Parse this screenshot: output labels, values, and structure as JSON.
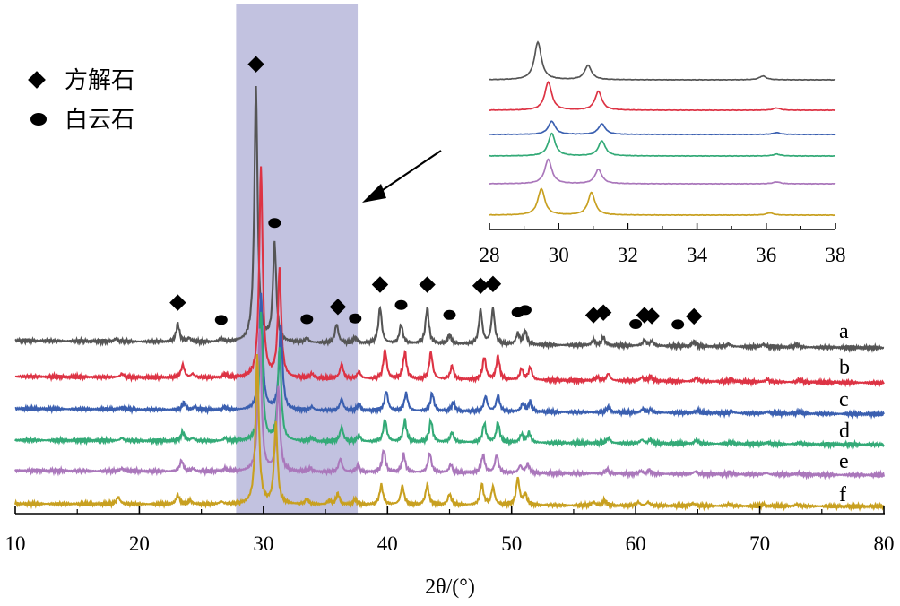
{
  "chart_data": [
    {
      "type": "line",
      "title": "",
      "xlabel": "2θ/(°)",
      "ylabel": "",
      "xlim": [
        10,
        80
      ],
      "xticks": [
        10,
        20,
        30,
        40,
        50,
        60,
        70,
        80
      ],
      "grid": false,
      "highlight_range": [
        27.8,
        37.6
      ],
      "legend": {
        "placement": "top-left",
        "entries": [
          {
            "symbol": "diamond",
            "label": "方解石"
          },
          {
            "symbol": "ellipse",
            "label": "白云石"
          }
        ]
      },
      "peak_markers": {
        "calcite": [
          23.1,
          29.4,
          36.0,
          39.4,
          43.2,
          47.5,
          48.5,
          56.6,
          57.4,
          60.7,
          61.3,
          64.7
        ],
        "dolomite": [
          26.6,
          30.9,
          33.5,
          37.4,
          41.1,
          45.0,
          50.5,
          51.1,
          60.0,
          63.4
        ]
      },
      "series": [
        {
          "name": "a",
          "color": "#555555",
          "peaks": [
            [
              18.1,
              0.03
            ],
            [
              23.1,
              0.2
            ],
            [
              24.0,
              0.04
            ],
            [
              26.6,
              0.04
            ],
            [
              29.4,
              2.85
            ],
            [
              30.9,
              1.1
            ],
            [
              33.5,
              0.05
            ],
            [
              35.9,
              0.21
            ],
            [
              37.4,
              0.06
            ],
            [
              39.4,
              0.4
            ],
            [
              41.1,
              0.21
            ],
            [
              43.2,
              0.4
            ],
            [
              45.0,
              0.1
            ],
            [
              47.5,
              0.38
            ],
            [
              48.5,
              0.4
            ],
            [
              50.5,
              0.12
            ],
            [
              51.1,
              0.15
            ],
            [
              56.6,
              0.06
            ],
            [
              57.4,
              0.09
            ],
            [
              60.7,
              0.06
            ],
            [
              61.3,
              0.05
            ],
            [
              64.7,
              0.05
            ],
            [
              67.5,
              0.03
            ],
            [
              70.3,
              0.03
            ],
            [
              73.0,
              0.03
            ]
          ]
        },
        {
          "name": "b",
          "color": "#dd3344",
          "peaks": [
            [
              18.6,
              0.04
            ],
            [
              23.5,
              0.14
            ],
            [
              24.3,
              0.04
            ],
            [
              26.9,
              0.04
            ],
            [
              29.8,
              2.35
            ],
            [
              31.3,
              1.2
            ],
            [
              33.9,
              0.05
            ],
            [
              36.3,
              0.16
            ],
            [
              37.7,
              0.08
            ],
            [
              39.8,
              0.32
            ],
            [
              41.4,
              0.3
            ],
            [
              43.5,
              0.3
            ],
            [
              45.2,
              0.15
            ],
            [
              47.8,
              0.25
            ],
            [
              48.9,
              0.26
            ],
            [
              50.8,
              0.12
            ],
            [
              51.5,
              0.14
            ],
            [
              56.9,
              0.04
            ],
            [
              57.8,
              0.08
            ],
            [
              60.5,
              0.04
            ],
            [
              61.2,
              0.05
            ],
            [
              64.9,
              0.04
            ],
            [
              67.7,
              0.03
            ],
            [
              70.6,
              0.03
            ],
            [
              73.2,
              0.03
            ]
          ]
        },
        {
          "name": "c",
          "color": "#3a5fb0",
          "peaks": [
            [
              18.6,
              0.02
            ],
            [
              23.6,
              0.08
            ],
            [
              24.5,
              0.03
            ],
            [
              26.9,
              0.03
            ],
            [
              29.8,
              1.3
            ],
            [
              31.4,
              0.95
            ],
            [
              33.9,
              0.04
            ],
            [
              36.3,
              0.13
            ],
            [
              37.7,
              0.07
            ],
            [
              39.9,
              0.22
            ],
            [
              41.5,
              0.2
            ],
            [
              43.6,
              0.2
            ],
            [
              45.3,
              0.1
            ],
            [
              47.9,
              0.17
            ],
            [
              48.9,
              0.18
            ],
            [
              50.9,
              0.09
            ],
            [
              51.5,
              0.11
            ],
            [
              57.8,
              0.06
            ],
            [
              60.6,
              0.04
            ],
            [
              61.2,
              0.03
            ],
            [
              65.0,
              0.03
            ],
            [
              67.8,
              0.02
            ],
            [
              70.6,
              0.02
            ],
            [
              73.2,
              0.02
            ]
          ]
        },
        {
          "name": "d",
          "color": "#33aa77",
          "peaks": [
            [
              18.6,
              0.03
            ],
            [
              23.5,
              0.1
            ],
            [
              24.3,
              0.03
            ],
            [
              26.9,
              0.03
            ],
            [
              29.8,
              1.45
            ],
            [
              31.3,
              1.05
            ],
            [
              33.9,
              0.04
            ],
            [
              36.3,
              0.16
            ],
            [
              37.7,
              0.07
            ],
            [
              39.8,
              0.25
            ],
            [
              41.4,
              0.24
            ],
            [
              43.5,
              0.24
            ],
            [
              45.2,
              0.11
            ],
            [
              47.8,
              0.21
            ],
            [
              48.9,
              0.22
            ],
            [
              50.8,
              0.09
            ],
            [
              51.4,
              0.11
            ],
            [
              57.8,
              0.06
            ],
            [
              60.5,
              0.04
            ],
            [
              61.2,
              0.04
            ],
            [
              64.9,
              0.04
            ],
            [
              67.7,
              0.02
            ],
            [
              70.6,
              0.02
            ],
            [
              73.2,
              0.02
            ]
          ]
        },
        {
          "name": "e",
          "color": "#aa77bb",
          "peaks": [
            [
              18.6,
              0.03
            ],
            [
              23.4,
              0.12
            ],
            [
              24.3,
              0.03
            ],
            [
              26.9,
              0.03
            ],
            [
              29.7,
              1.6
            ],
            [
              31.2,
              0.95
            ],
            [
              33.8,
              0.04
            ],
            [
              36.2,
              0.15
            ],
            [
              37.6,
              0.07
            ],
            [
              39.7,
              0.25
            ],
            [
              41.3,
              0.2
            ],
            [
              43.4,
              0.22
            ],
            [
              45.1,
              0.09
            ],
            [
              47.7,
              0.2
            ],
            [
              48.8,
              0.2
            ],
            [
              50.7,
              0.08
            ],
            [
              51.3,
              0.1
            ],
            [
              57.7,
              0.05
            ],
            [
              60.4,
              0.03
            ],
            [
              61.1,
              0.04
            ],
            [
              64.8,
              0.03
            ],
            [
              67.6,
              0.02
            ],
            [
              70.5,
              0.02
            ],
            [
              73.1,
              0.02
            ]
          ]
        },
        {
          "name": "f",
          "color": "#c8a020",
          "peaks": [
            [
              18.3,
              0.08
            ],
            [
              23.1,
              0.1
            ],
            [
              24.1,
              0.04
            ],
            [
              26.6,
              0.03
            ],
            [
              29.5,
              1.65
            ],
            [
              31.0,
              0.9
            ],
            [
              33.5,
              0.06
            ],
            [
              35.3,
              0.04
            ],
            [
              36.0,
              0.12
            ],
            [
              37.4,
              0.06
            ],
            [
              39.5,
              0.22
            ],
            [
              41.2,
              0.21
            ],
            [
              43.2,
              0.22
            ],
            [
              45.0,
              0.12
            ],
            [
              47.6,
              0.23
            ],
            [
              48.5,
              0.2
            ],
            [
              50.5,
              0.3
            ],
            [
              51.1,
              0.12
            ],
            [
              56.6,
              0.04
            ],
            [
              57.5,
              0.06
            ],
            [
              60.2,
              0.04
            ],
            [
              61.0,
              0.04
            ],
            [
              64.6,
              0.03
            ],
            [
              67.5,
              0.02
            ],
            [
              70.3,
              0.02
            ],
            [
              73.0,
              0.02
            ]
          ]
        }
      ]
    },
    {
      "type": "line",
      "title": "",
      "xlabel": "",
      "ylabel": "",
      "xlim": [
        28,
        38
      ],
      "xticks": [
        28,
        30,
        32,
        34,
        36,
        38
      ],
      "grid": false,
      "placement": "top-right",
      "series": [
        {
          "name": "a",
          "color": "#555555",
          "peaks": [
            [
              29.4,
              1.0
            ],
            [
              30.85,
              0.38
            ],
            [
              35.9,
              0.1
            ]
          ]
        },
        {
          "name": "b",
          "color": "#dd3344",
          "peaks": [
            [
              29.7,
              0.75
            ],
            [
              31.15,
              0.5
            ],
            [
              36.3,
              0.06
            ]
          ]
        },
        {
          "name": "c",
          "color": "#3a5fb0",
          "peaks": [
            [
              29.8,
              0.35
            ],
            [
              31.25,
              0.28
            ],
            [
              36.3,
              0.05
            ]
          ]
        },
        {
          "name": "d",
          "color": "#33aa77",
          "peaks": [
            [
              29.8,
              0.6
            ],
            [
              31.25,
              0.4
            ],
            [
              36.3,
              0.05
            ]
          ]
        },
        {
          "name": "e",
          "color": "#aa77bb",
          "peaks": [
            [
              29.7,
              0.65
            ],
            [
              31.15,
              0.38
            ],
            [
              36.3,
              0.05
            ]
          ]
        },
        {
          "name": "f",
          "color": "#c8a020",
          "peaks": [
            [
              29.5,
              0.7
            ],
            [
              30.95,
              0.6
            ],
            [
              36.1,
              0.06
            ]
          ]
        }
      ]
    }
  ]
}
